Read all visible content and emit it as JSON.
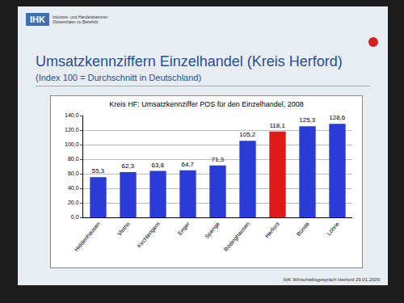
{
  "slide": {
    "logo": "IHK",
    "logo_text": "Industrie- und Handelskammer Ostwestfalen zu Bielefeld",
    "title": "Umsatzkennziffern Einzelhandel (Kreis Herford)",
    "subtitle": "(Index 100 = Durchschnitt in Deutschland)",
    "footer": "IHK Wirtschaftsgespräch Herford 29.01.2009"
  },
  "chart_data": {
    "type": "bar",
    "title": "Kreis HF: Umsatzkennziffer POS für den Einzelhandel, 2008",
    "categories": [
      "Hiddenhausen",
      "Vlotho",
      "Kirchlengern",
      "Enger",
      "Spenge",
      "Rödinghausen",
      "Herford",
      "Bünde",
      "Löhne"
    ],
    "values": [
      55.3,
      62.3,
      63.8,
      64.7,
      71.3,
      105.2,
      118.1,
      125.3,
      128.6
    ],
    "value_labels": [
      "55,3",
      "62,3",
      "63,8",
      "64,7",
      "71,3",
      "105,2",
      "118,1",
      "125,3",
      "128,6"
    ],
    "colors": [
      "#2b3bd6",
      "#2b3bd6",
      "#2b3bd6",
      "#2b3bd6",
      "#2b3bd6",
      "#2b3bd6",
      "#e01a1a",
      "#2b3bd6",
      "#2b3bd6"
    ],
    "ylim": [
      0,
      140
    ],
    "yticks": [
      {
        "value": 0,
        "label": "0,0"
      },
      {
        "value": 20,
        "label": "20,0"
      },
      {
        "value": 40,
        "label": "40,0"
      },
      {
        "value": 60,
        "label": "60,0"
      },
      {
        "value": 80,
        "label": "80,0"
      },
      {
        "value": 100,
        "label": "100,0"
      },
      {
        "value": 120,
        "label": "120,0"
      },
      {
        "value": 140,
        "label": "140,0"
      }
    ],
    "grid": true,
    "data_labels": true
  }
}
